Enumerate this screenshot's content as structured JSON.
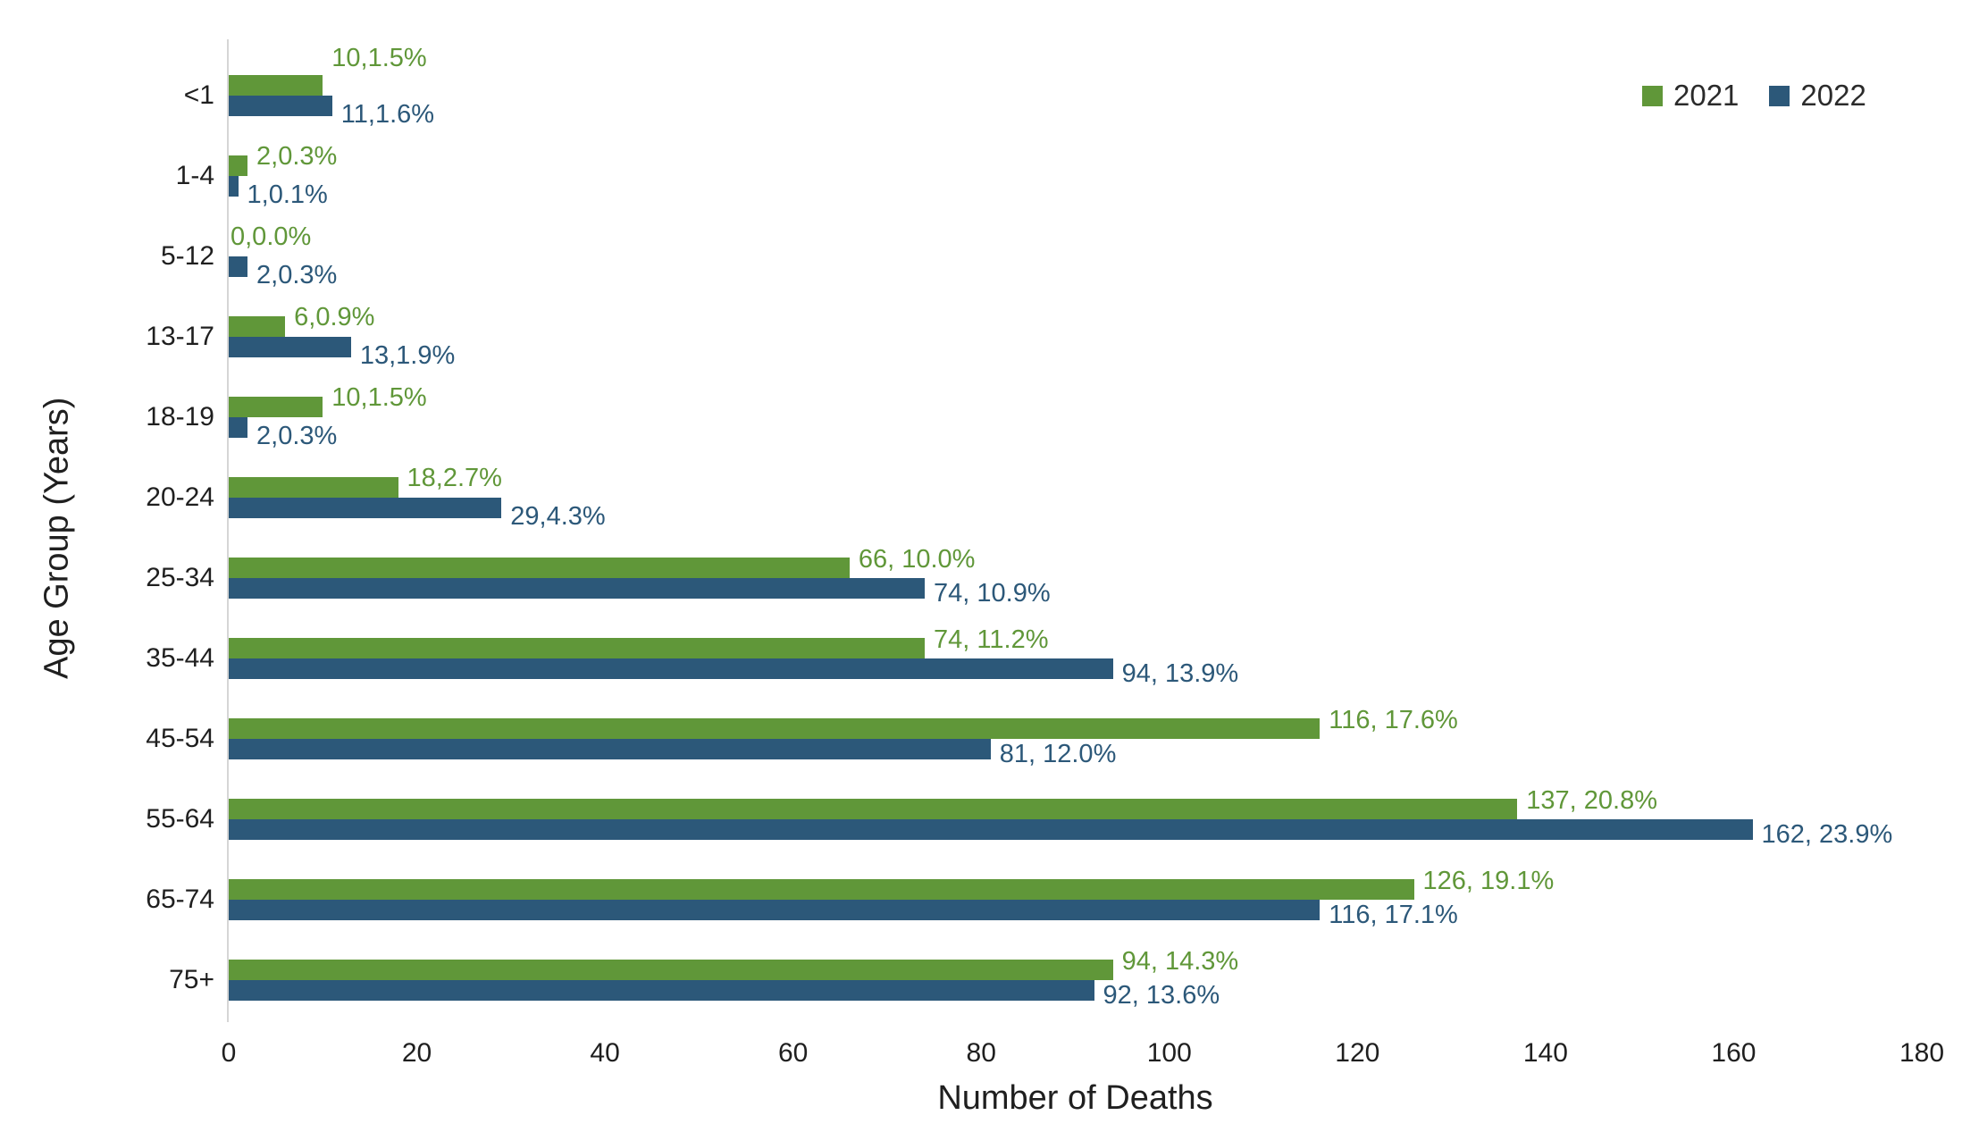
{
  "chart_data": {
    "type": "bar",
    "orientation": "horizontal",
    "categories": [
      "<1",
      "1-4",
      "5-12",
      "13-17",
      "18-19",
      "20-24",
      "25-34",
      "35-44",
      "45-54",
      "55-64",
      "65-74",
      "75+"
    ],
    "series": [
      {
        "name": "2021",
        "color": "#609739",
        "values": [
          10,
          2,
          0,
          6,
          10,
          18,
          66,
          74,
          116,
          137,
          126,
          94
        ],
        "data_labels": [
          "10,1.5%",
          "2,0.3%",
          "0,0.0%",
          "6,0.9%",
          "10,1.5%",
          "18,2.7%",
          "66, 10.0%",
          "74, 11.2%",
          "116, 17.6%",
          "137, 20.8%",
          "126, 19.1%",
          "94, 14.3%"
        ]
      },
      {
        "name": "2022",
        "color": "#2c5879",
        "values": [
          11,
          1,
          2,
          13,
          2,
          29,
          74,
          94,
          81,
          162,
          116,
          92
        ],
        "data_labels": [
          "11,1.6%",
          "1,0.1%",
          "2,0.3%",
          "13,1.9%",
          "2,0.3%",
          "29,4.3%",
          "74, 10.9%",
          "94, 13.9%",
          "81, 12.0%",
          "162, 23.9%",
          "116, 17.1%",
          "92, 13.6%"
        ]
      }
    ],
    "xlabel": "Number of Deaths",
    "ylabel": "Age Group (Years)",
    "xlim": [
      0,
      180
    ],
    "xticks": [
      0,
      20,
      40,
      60,
      80,
      100,
      120,
      140,
      160,
      180
    ],
    "grid": false,
    "legend": {
      "position": "top-right",
      "entries": [
        "2021",
        "2022"
      ]
    },
    "axis_line_color": "#d6d6d6",
    "text_color": "#1f1f1f"
  }
}
